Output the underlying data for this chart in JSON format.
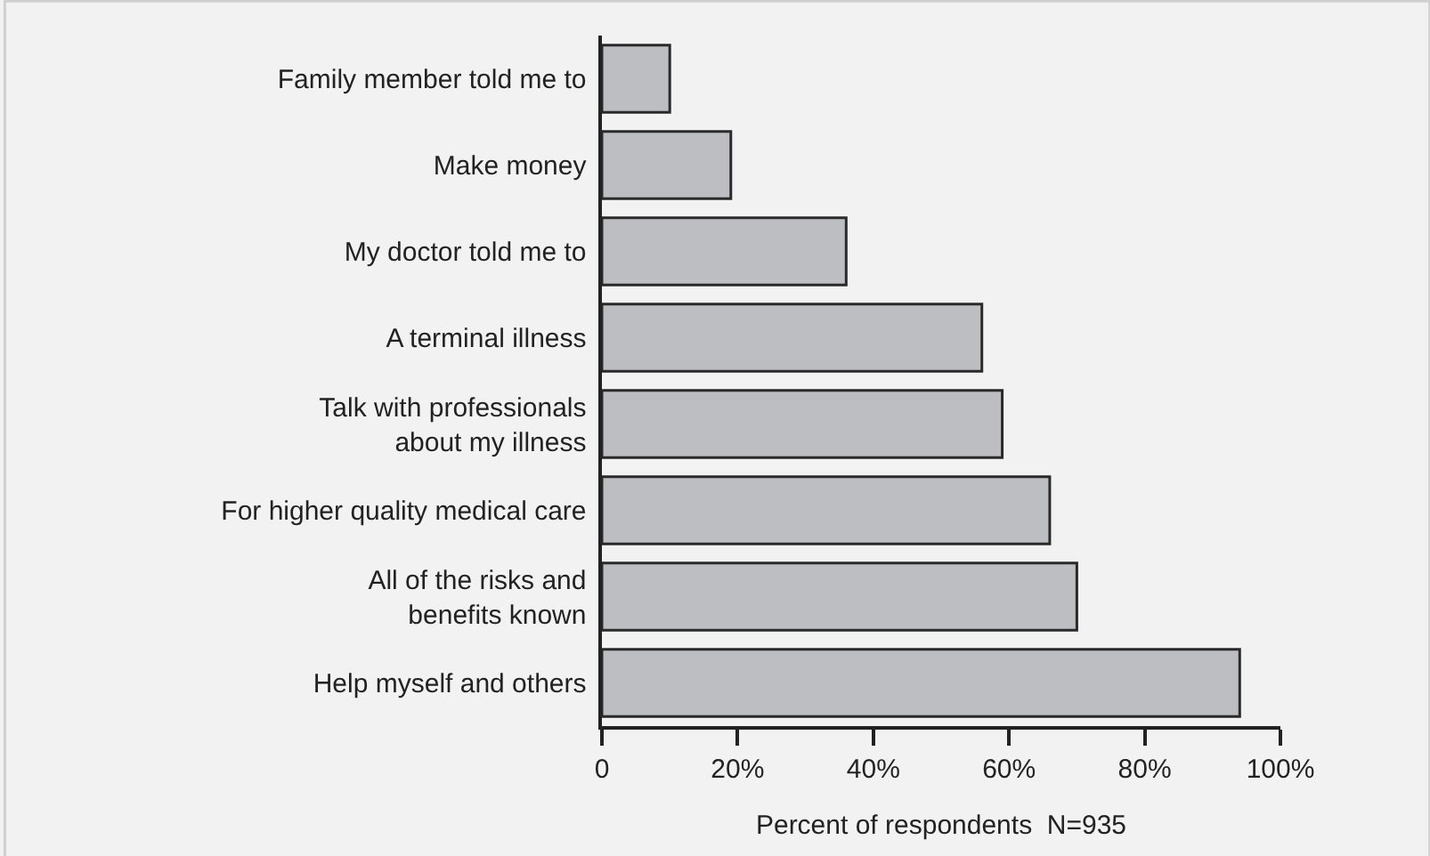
{
  "chart_data": {
    "type": "bar",
    "orientation": "horizontal",
    "categories": [
      "Family member told me to",
      "Make money",
      "My doctor told me to",
      "A terminal illness",
      "Talk with professionals\nabout my illness",
      "For higher quality medical care",
      "All of the risks and\nbenefits known",
      "Help myself and others"
    ],
    "values": [
      10,
      19,
      36,
      56,
      59,
      66,
      70,
      94
    ],
    "color": "#bdbec2",
    "xlim": [
      0,
      100
    ],
    "xticks": [
      0,
      {
        "value": 20,
        "label": "20%"
      },
      {
        "value": 40,
        "label": "40%"
      },
      {
        "value": 60,
        "label": "60%"
      },
      {
        "value": 80,
        "label": "80%"
      },
      {
        "value": 100,
        "label": "100%"
      }
    ],
    "xlabel": "Percent of respondents  N=935",
    "grid": false,
    "legend": false
  }
}
